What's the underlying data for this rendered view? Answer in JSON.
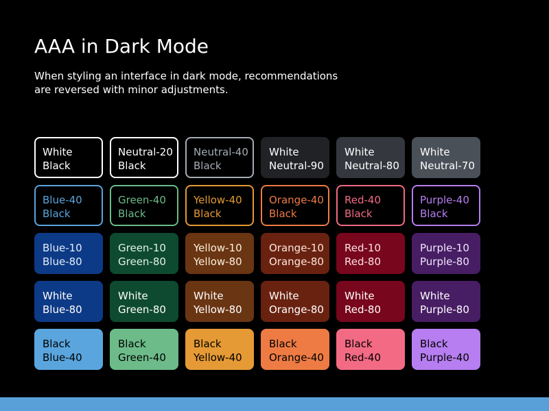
{
  "title": "AAA in Dark Mode",
  "description": "When styling an interface in dark mode, recommendations are reversed with minor adjustments.",
  "colors": {
    "page_background": "#000000",
    "text_primary": "#ffffff",
    "bottom_bar": "#5aa0d8"
  },
  "swatches": [
    {
      "fg_label": "White",
      "bg_label": "Black",
      "fg": "#ffffff",
      "bg": "#000000",
      "border": "#ffffff"
    },
    {
      "fg_label": "Neutral-20",
      "bg_label": "Black",
      "fg": "#ffffff",
      "bg": "#000000",
      "border": "#ffffff"
    },
    {
      "fg_label": "Neutral-40",
      "bg_label": "Black",
      "fg": "#a6acb5",
      "bg": "#000000",
      "border": "#a6acb5"
    },
    {
      "fg_label": "White",
      "bg_label": "Neutral-90",
      "fg": "#ffffff",
      "bg": "#202226",
      "border": "#202226"
    },
    {
      "fg_label": "White",
      "bg_label": "Neutral-80",
      "fg": "#ffffff",
      "bg": "#34383e",
      "border": "#34383e"
    },
    {
      "fg_label": "White",
      "bg_label": "Neutral-70",
      "fg": "#ffffff",
      "bg": "#4a5058",
      "border": "#4a5058"
    },
    {
      "fg_label": "Blue-40",
      "bg_label": "Black",
      "fg": "#5aa5de",
      "bg": "#000000",
      "border": "#5aa5de"
    },
    {
      "fg_label": "Green-40",
      "bg_label": "Black",
      "fg": "#6cbb89",
      "bg": "#000000",
      "border": "#6cbb89"
    },
    {
      "fg_label": "Yellow-40",
      "bg_label": "Black",
      "fg": "#e59a35",
      "bg": "#000000",
      "border": "#e59a35"
    },
    {
      "fg_label": "Orange-40",
      "bg_label": "Black",
      "fg": "#ee7b44",
      "bg": "#000000",
      "border": "#ee7b44"
    },
    {
      "fg_label": "Red-40",
      "bg_label": "Black",
      "fg": "#f36a84",
      "bg": "#000000",
      "border": "#f36a84"
    },
    {
      "fg_label": "Purple-40",
      "bg_label": "Black",
      "fg": "#b67ef0",
      "bg": "#000000",
      "border": "#b67ef0"
    },
    {
      "fg_label": "Blue-10",
      "bg_label": "Blue-80",
      "fg": "#e2eef9",
      "bg": "#0d3a86",
      "border": "#0d3a86"
    },
    {
      "fg_label": "Green-10",
      "bg_label": "Green-80",
      "fg": "#e2f3e8",
      "bg": "#0e4a30",
      "border": "#0e4a30"
    },
    {
      "fg_label": "Yellow-10",
      "bg_label": "Yellow-80",
      "fg": "#fbf0dc",
      "bg": "#6a3512",
      "border": "#6a3512"
    },
    {
      "fg_label": "Orange-10",
      "bg_label": "Orange-80",
      "fg": "#fbe6dc",
      "bg": "#6a2210",
      "border": "#6a2210"
    },
    {
      "fg_label": "Red-10",
      "bg_label": "Red-80",
      "fg": "#fbe2e6",
      "bg": "#78061c",
      "border": "#78061c"
    },
    {
      "fg_label": "Purple-10",
      "bg_label": "Purple-80",
      "fg": "#f1e6fb",
      "bg": "#471d64",
      "border": "#471d64"
    },
    {
      "fg_label": "White",
      "bg_label": "Blue-80",
      "fg": "#ffffff",
      "bg": "#0d3a86",
      "border": "#0d3a86"
    },
    {
      "fg_label": "White",
      "bg_label": "Green-80",
      "fg": "#ffffff",
      "bg": "#0e4a30",
      "border": "#0e4a30"
    },
    {
      "fg_label": "White",
      "bg_label": "Yellow-80",
      "fg": "#ffffff",
      "bg": "#6a3512",
      "border": "#6a3512"
    },
    {
      "fg_label": "White",
      "bg_label": "Orange-80",
      "fg": "#ffffff",
      "bg": "#6a2210",
      "border": "#6a2210"
    },
    {
      "fg_label": "White",
      "bg_label": "Red-80",
      "fg": "#ffffff",
      "bg": "#78061c",
      "border": "#78061c"
    },
    {
      "fg_label": "White",
      "bg_label": "Purple-80",
      "fg": "#ffffff",
      "bg": "#471d64",
      "border": "#471d64"
    },
    {
      "fg_label": "Black",
      "bg_label": "Blue-40",
      "fg": "#000000",
      "bg": "#5aa5de",
      "border": "#5aa5de"
    },
    {
      "fg_label": "Black",
      "bg_label": "Green-40",
      "fg": "#000000",
      "bg": "#6cbb89",
      "border": "#6cbb89"
    },
    {
      "fg_label": "Black",
      "bg_label": "Yellow-40",
      "fg": "#000000",
      "bg": "#e59a35",
      "border": "#e59a35"
    },
    {
      "fg_label": "Black",
      "bg_label": "Orange-40",
      "fg": "#000000",
      "bg": "#ee7b44",
      "border": "#ee7b44"
    },
    {
      "fg_label": "Black",
      "bg_label": "Red-40",
      "fg": "#000000",
      "bg": "#f36a84",
      "border": "#f36a84"
    },
    {
      "fg_label": "Black",
      "bg_label": "Purple-40",
      "fg": "#000000",
      "bg": "#b67ef0",
      "border": "#b67ef0"
    }
  ]
}
